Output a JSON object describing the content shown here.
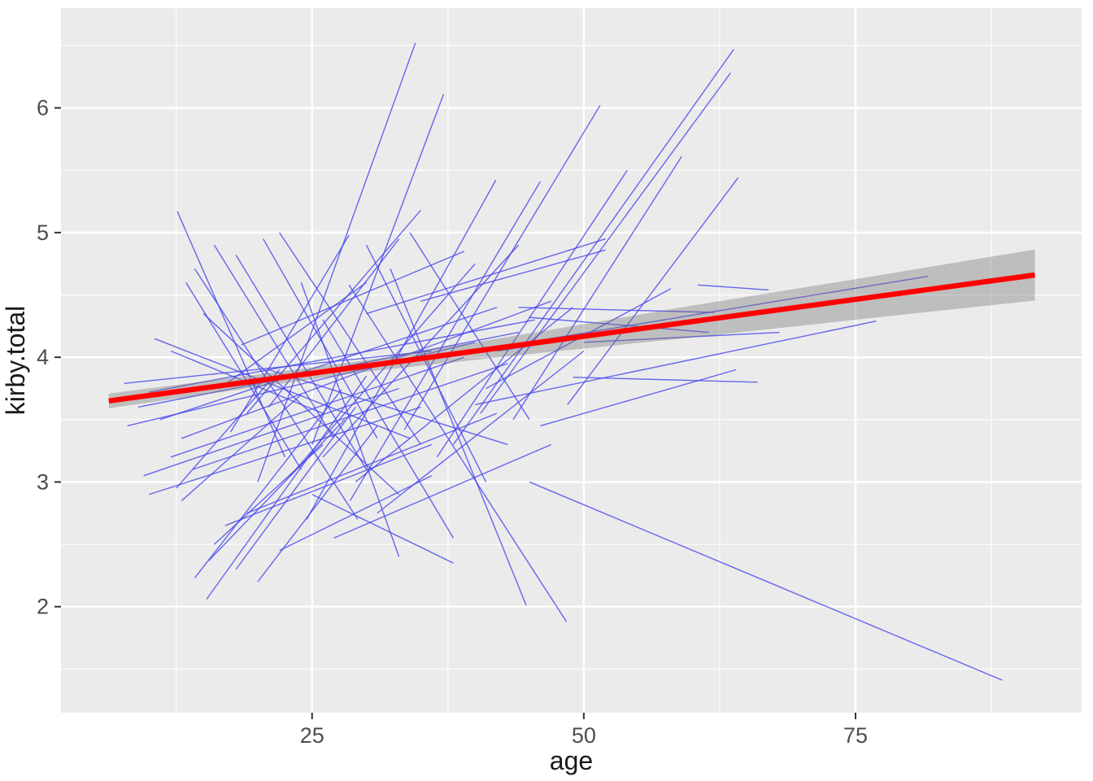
{
  "chart_data": {
    "type": "line",
    "title": "",
    "xlabel": "age",
    "ylabel": "kirby.total",
    "x_ticks": [
      25,
      50,
      75
    ],
    "y_ticks": [
      2,
      3,
      4,
      5,
      6
    ],
    "x_minor_ticks": [
      12.5,
      37.5,
      62.5,
      87.5
    ],
    "y_minor_ticks": [
      1.5,
      2.5,
      3.5,
      4.5,
      5.5,
      6.5
    ],
    "xlim": [
      1.9,
      95.8
    ],
    "ylim": [
      1.15,
      6.8
    ],
    "grid": true,
    "legend_position": "none",
    "colors": {
      "panel_background": "#EBEBEB",
      "grid": "#FFFFFF",
      "subject_lines": "#4444EE",
      "regression_line": "#FF0000",
      "confidence_band": "#777777",
      "tick_label": "#4D4D4D",
      "axis_title": "#1A1A1A",
      "tick_mark": "#333333"
    },
    "regression_line": {
      "x": [
        6.3,
        91.5
      ],
      "y": [
        3.65,
        4.66
      ]
    },
    "confidence_band": [
      {
        "x": 6.3,
        "lo": 3.591,
        "hi": 3.709
      },
      {
        "x": 20.0,
        "lo": 3.762,
        "hi": 3.862
      },
      {
        "x": 30.0,
        "lo": 3.885,
        "hi": 3.977
      },
      {
        "x": 45.7,
        "lo": 4.032,
        "hi": 4.202
      },
      {
        "x": 60.0,
        "lo": 4.159,
        "hi": 4.415
      },
      {
        "x": 75.0,
        "lo": 4.301,
        "hi": 4.627
      },
      {
        "x": 91.5,
        "lo": 4.455,
        "hi": 4.865
      }
    ],
    "subject_segments": [
      [
        20,
        3.0,
        34.5,
        6.52
      ],
      [
        25,
        3.3,
        37.1,
        6.11
      ],
      [
        33.5,
        3.42,
        51.5,
        6.02
      ],
      [
        38,
        3.3,
        63.8,
        6.47
      ],
      [
        40.5,
        3.55,
        63.5,
        6.28
      ],
      [
        43.5,
        3.5,
        59,
        5.61
      ],
      [
        24.5,
        2.7,
        41.9,
        5.42
      ],
      [
        28.5,
        2.85,
        46,
        5.41
      ],
      [
        36.5,
        3.2,
        54,
        5.5
      ],
      [
        48.5,
        3.62,
        64.2,
        5.44
      ],
      [
        12.6,
        5.17,
        22.5,
        3.2
      ],
      [
        14.2,
        4.71,
        29.2,
        2.7
      ],
      [
        13.4,
        4.6,
        24,
        3.1
      ],
      [
        16,
        4.9,
        27,
        3.35
      ],
      [
        18,
        4.82,
        30,
        3.1
      ],
      [
        12,
        4.05,
        26,
        3.55
      ],
      [
        10.5,
        4.15,
        34,
        3.35
      ],
      [
        15,
        4.35,
        33,
        2.9
      ],
      [
        20.5,
        4.95,
        31,
        3.35
      ],
      [
        22,
        5.0,
        35,
        3.3
      ],
      [
        19,
        3.55,
        35,
        5.18
      ],
      [
        17.5,
        3.4,
        28.4,
        4.98
      ],
      [
        21,
        3.6,
        33,
        4.95
      ],
      [
        16.5,
        3.75,
        30,
        4.6
      ],
      [
        8,
        3.45,
        40,
        4.12
      ],
      [
        9,
        3.6,
        44,
        4.2
      ],
      [
        10,
        3.72,
        45.5,
        4.3
      ],
      [
        7.7,
        3.79,
        36,
        4.05
      ],
      [
        11,
        3.5,
        42,
        4.4
      ],
      [
        13,
        3.35,
        47,
        4.45
      ],
      [
        12,
        3.2,
        39,
        4.0
      ],
      [
        14,
        3.1,
        43,
        3.95
      ],
      [
        9.5,
        3.05,
        33,
        3.75
      ],
      [
        10,
        2.9,
        35,
        3.6
      ],
      [
        33,
        3.95,
        81.7,
        4.65
      ],
      [
        40,
        3.62,
        76.9,
        4.29
      ],
      [
        45,
        4.32,
        61.5,
        4.2
      ],
      [
        60.5,
        4.58,
        67,
        4.54
      ],
      [
        50,
        4.12,
        68,
        4.2
      ],
      [
        49,
        3.84,
        66,
        3.8
      ],
      [
        42,
        4.05,
        66.5,
        4.38
      ],
      [
        44,
        4.4,
        62,
        4.36
      ],
      [
        46,
        3.45,
        64,
        3.9
      ],
      [
        41,
        3.75,
        58,
        4.55
      ],
      [
        32.2,
        4.71,
        44.7,
        2.01
      ],
      [
        28.4,
        4.58,
        48.4,
        1.88
      ],
      [
        45,
        3.0,
        88.5,
        1.41
      ],
      [
        26,
        4.3,
        38,
        2.55
      ],
      [
        24,
        4.6,
        33,
        2.4
      ],
      [
        30,
        4.9,
        41,
        3.0
      ],
      [
        34,
        5.0,
        45,
        3.5
      ],
      [
        14.2,
        2.23,
        27.7,
        3.74
      ],
      [
        15.3,
        2.06,
        30,
        3.85
      ],
      [
        15.5,
        2.37,
        28,
        3.5
      ],
      [
        16,
        2.5,
        26,
        3.3
      ],
      [
        18,
        2.3,
        29,
        3.6
      ],
      [
        20,
        2.2,
        31,
        3.45
      ],
      [
        17,
        2.65,
        36,
        3.3
      ],
      [
        22,
        2.45,
        36,
        3.05
      ],
      [
        19,
        2.75,
        42,
        3.55
      ],
      [
        13,
        2.85,
        24,
        3.7
      ],
      [
        12.5,
        2.95,
        22,
        3.9
      ],
      [
        23,
        3.05,
        40,
        4.75
      ],
      [
        26,
        3.2,
        44,
        4.9
      ],
      [
        29,
        3.0,
        49,
        4.4
      ],
      [
        31,
        2.75,
        50,
        4.05
      ],
      [
        27,
        2.55,
        47,
        3.3
      ],
      [
        25,
        2.9,
        38,
        2.35
      ],
      [
        21,
        3.9,
        43,
        3.3
      ],
      [
        18.5,
        4.1,
        39,
        4.85
      ],
      [
        35,
        4.45,
        52,
        4.86
      ],
      [
        30,
        4.35,
        52,
        4.95
      ]
    ]
  }
}
